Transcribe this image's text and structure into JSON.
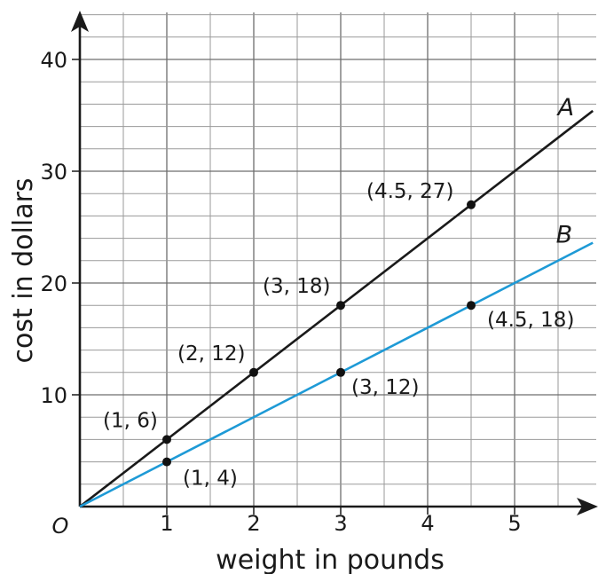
{
  "chart_data": {
    "type": "line",
    "xlabel": "weight in pounds",
    "ylabel": "cost in dollars",
    "xlim": [
      0,
      5.9
    ],
    "ylim": [
      0,
      44
    ],
    "x_ticks": [
      1,
      2,
      3,
      4,
      5
    ],
    "y_ticks": [
      10,
      20,
      30,
      40
    ],
    "x_tick_labels": [
      "1",
      "2",
      "3",
      "4",
      "5"
    ],
    "y_tick_labels": [
      "10",
      "20",
      "30",
      "40"
    ],
    "origin_label": "O",
    "grid": true,
    "series": [
      {
        "name": "A",
        "color": "#1a1a1a",
        "line": [
          [
            0,
            0
          ],
          [
            5.9,
            35.4
          ]
        ],
        "points": [
          {
            "x": 1,
            "y": 6,
            "label": "(1, 6)"
          },
          {
            "x": 2,
            "y": 12,
            "label": "(2, 12)"
          },
          {
            "x": 3,
            "y": 18,
            "label": "(3, 18)"
          },
          {
            "x": 4.5,
            "y": 27,
            "label": "(4.5, 27)"
          }
        ]
      },
      {
        "name": "B",
        "color": "#1e9ad6",
        "line": [
          [
            0,
            0
          ],
          [
            5.9,
            23.6
          ]
        ],
        "points": [
          {
            "x": 1,
            "y": 4,
            "label": "(1, 4)"
          },
          {
            "x": 3,
            "y": 12,
            "label": "(3, 12)"
          },
          {
            "x": 4.5,
            "y": 18,
            "label": "(4.5, 18)"
          }
        ]
      }
    ]
  }
}
